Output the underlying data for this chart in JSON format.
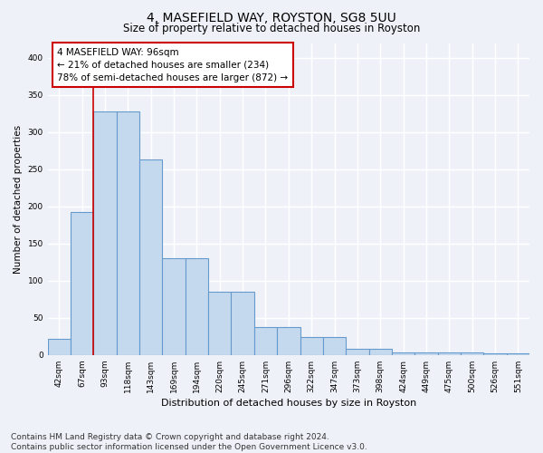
{
  "title": "4, MASEFIELD WAY, ROYSTON, SG8 5UU",
  "subtitle": "Size of property relative to detached houses in Royston",
  "xlabel": "Distribution of detached houses by size in Royston",
  "ylabel": "Number of detached properties",
  "categories": [
    "42sqm",
    "67sqm",
    "93sqm",
    "118sqm",
    "143sqm",
    "169sqm",
    "194sqm",
    "220sqm",
    "245sqm",
    "271sqm",
    "296sqm",
    "322sqm",
    "347sqm",
    "373sqm",
    "398sqm",
    "424sqm",
    "449sqm",
    "475sqm",
    "500sqm",
    "526sqm",
    "551sqm"
  ],
  "values": [
    22,
    193,
    328,
    328,
    263,
    130,
    130,
    85,
    85,
    38,
    38,
    24,
    24,
    8,
    8,
    4,
    4,
    4,
    4,
    2,
    2
  ],
  "bar_color": "#c5d9ee",
  "bar_edge_color": "#6699cc",
  "property_line_color": "#cc0000",
  "property_line_index": 2,
  "annotation_text": "4 MASEFIELD WAY: 96sqm\n← 21% of detached houses are smaller (234)\n78% of semi-detached houses are larger (872) →",
  "annotation_box_facecolor": "#ffffff",
  "annotation_box_edgecolor": "#cc0000",
  "ylim": [
    0,
    420
  ],
  "yticks": [
    0,
    50,
    100,
    150,
    200,
    250,
    300,
    350,
    400
  ],
  "footer_line1": "Contains HM Land Registry data © Crown copyright and database right 2024.",
  "footer_line2": "Contains public sector information licensed under the Open Government Licence v3.0.",
  "bg_color": "#eef2f8",
  "plot_bg_color": "#eef2f8",
  "grid_color": "#ffffff",
  "title_fontsize": 10,
  "subtitle_fontsize": 8.5,
  "xlabel_fontsize": 8,
  "ylabel_fontsize": 7.5,
  "tick_fontsize": 6.5,
  "annotation_fontsize": 7.5,
  "footer_fontsize": 6.5
}
